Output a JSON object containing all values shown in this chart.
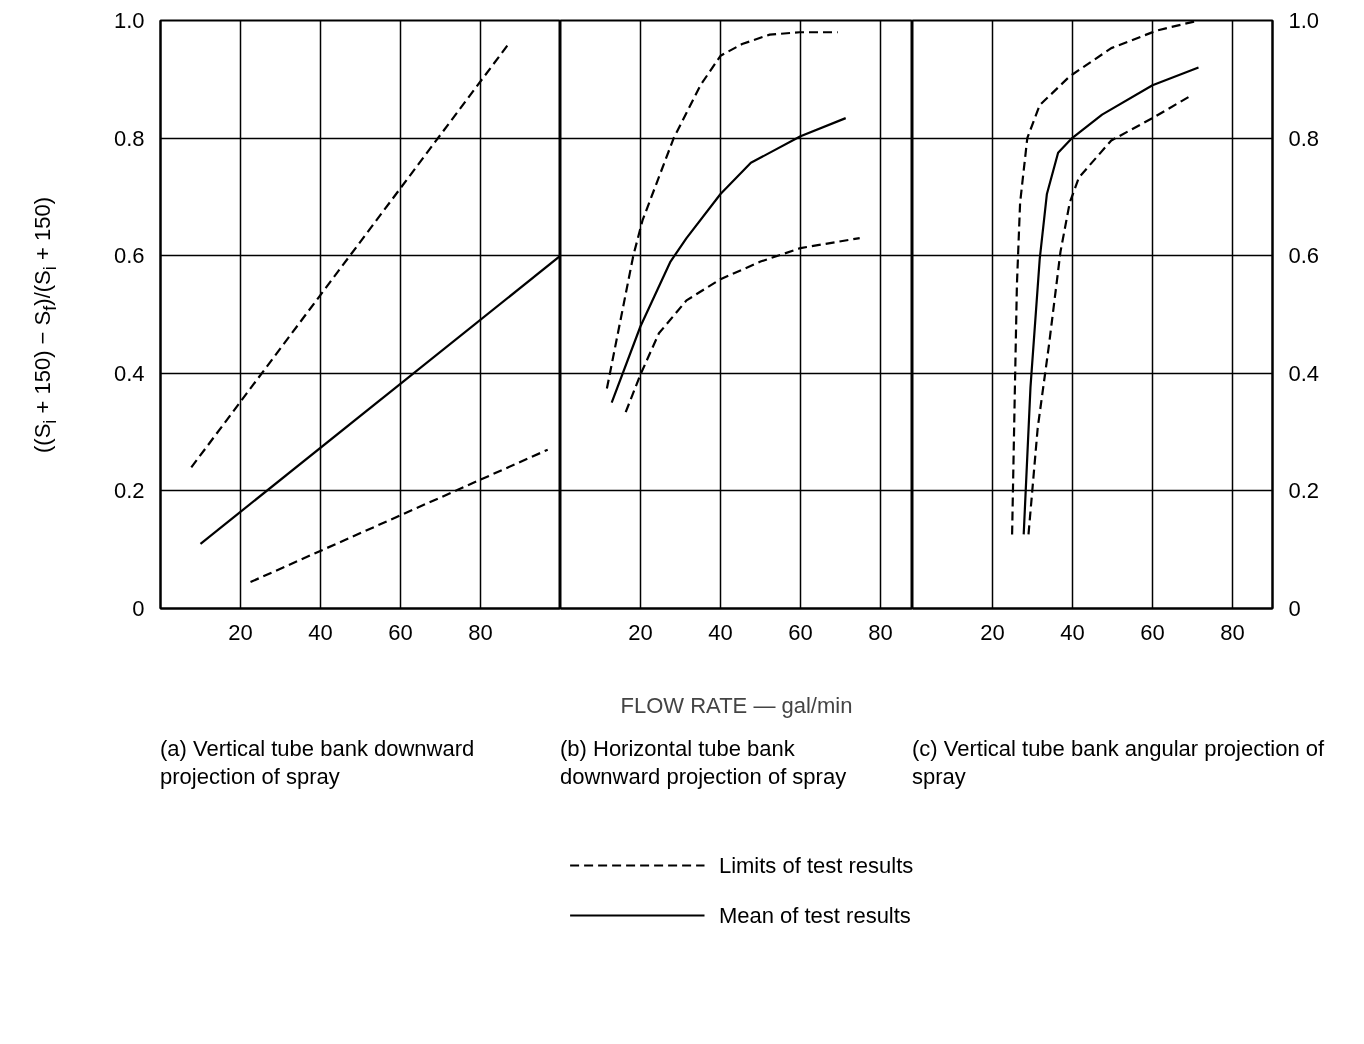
{
  "chart_data": [
    {
      "type": "line",
      "xlim": [
        0,
        100
      ],
      "ylim": [
        0,
        1
      ],
      "xticks": [
        20,
        40,
        60,
        80
      ],
      "yticks": [
        0,
        0.2,
        0.4,
        0.6,
        0.8,
        {
          "value": 1,
          "label": "1.0"
        }
      ],
      "grid": true,
      "ylabel": "((S$_{i}$ + 150) − S$_{f}$)/(S$_{i}$ + 150)",
      "legend": "bottom",
      "annotations": [
        "(a) Vertical tube bank downward projection of spray"
      ],
      "series": [
        {
          "name": "Limits of test results",
          "color": "#000000",
          "line_style": "dashed",
          "x": [
            7.7,
            87
          ],
          "values": [
            0.24,
            0.96
          ]
        },
        {
          "name": "Mean of test results",
          "color": "#000000",
          "line_style": "solid",
          "x": [
            10,
            100
          ],
          "values": [
            0.11,
            0.6
          ]
        },
        {
          "color": "#000000",
          "line_style": "dashed",
          "x": [
            22.5,
            96.8
          ],
          "values": [
            0.045,
            0.27
          ]
        }
      ]
    },
    {
      "type": "line",
      "xlim": [
        0,
        88
      ],
      "ylim": [
        0,
        1
      ],
      "xticks": [
        20,
        40,
        60,
        80
      ],
      "yticks": [
        0,
        0.2,
        0.4,
        0.6,
        0.8,
        1.0
      ],
      "grid": true,
      "tick_labels": "x",
      "xlabel": "FLOW RATE — gal/min",
      "annotations": [
        "(b) Horizontal tube bank downward projection of spray"
      ],
      "series": [
        {
          "color": "#000000",
          "line_style": "dashed",
          "x": [
            11.6,
            18.2,
            20.5,
            28.3,
            35,
            40,
            45.4,
            52.3,
            59.8,
            69.3
          ],
          "values": [
            0.374,
            0.6,
            0.66,
            0.8,
            0.89,
            0.94,
            0.96,
            0.976,
            0.98,
            0.98
          ]
        },
        {
          "color": "#000000",
          "line_style": "solid",
          "x": [
            12.8,
            20,
            27.5,
            31.5,
            40,
            47.6,
            60,
            71.3
          ],
          "values": [
            0.35,
            0.48,
            0.59,
            0.63,
            0.705,
            0.758,
            0.803,
            0.834
          ]
        },
        {
          "color": "#000000",
          "line_style": "dashed",
          "x": [
            16.3,
            20,
            24.6,
            31.5,
            40,
            50,
            60,
            74.8
          ],
          "values": [
            0.334,
            0.398,
            0.468,
            0.524,
            0.56,
            0.59,
            0.613,
            0.63
          ]
        }
      ]
    },
    {
      "type": "line",
      "xlim": [
        0,
        90
      ],
      "ylim": [
        0,
        1
      ],
      "xticks": [
        20,
        40,
        60,
        80
      ],
      "yticks": [
        0,
        0.2,
        0.4,
        0.6,
        0.8,
        {
          "value": 1,
          "label": "1.0"
        }
      ],
      "grid": true,
      "annotations": [
        "(c) Vertical tube bank angular projection of spray"
      ],
      "series": [
        {
          "color": "#000000",
          "line_style": "dashed",
          "x": [
            24.9,
            25.5,
            26.1,
            26.9,
            28.7,
            31.8,
            39.3,
            49.7,
            61.1,
            71.5
          ],
          "values": [
            0.126,
            0.34,
            0.55,
            0.69,
            0.8,
            0.856,
            0.905,
            0.953,
            0.983,
            1.0
          ]
        },
        {
          "color": "#000000",
          "line_style": "solid",
          "x": [
            27.8,
            29.5,
            31.8,
            33.6,
            36.4,
            39.9,
            47.4,
            60,
            71.5
          ],
          "values": [
            0.126,
            0.377,
            0.594,
            0.705,
            0.775,
            0.8,
            0.84,
            0.89,
            0.92
          ]
        },
        {
          "color": "#000000",
          "line_style": "dashed",
          "x": [
            29,
            31.3,
            34.1,
            37,
            39.3,
            41.6,
            49.7,
            60,
            69.8
          ],
          "values": [
            0.126,
            0.307,
            0.447,
            0.607,
            0.69,
            0.733,
            0.796,
            0.834,
            0.873
          ]
        }
      ]
    }
  ]
}
